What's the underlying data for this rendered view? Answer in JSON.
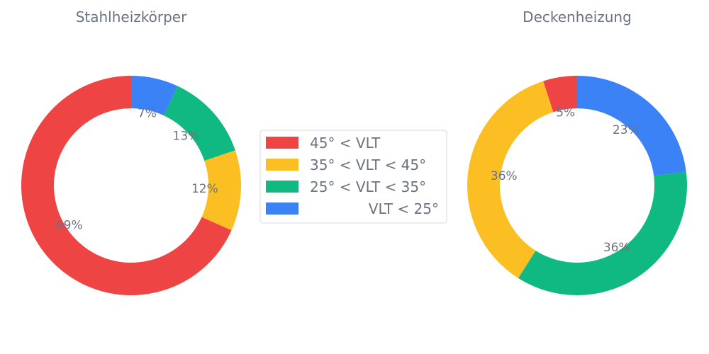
{
  "chart_data": [
    {
      "type": "pie",
      "title": "Stahlheizkörper",
      "categories": [
        "45° < VLT",
        "35° < VLT < 45°",
        "25° < VLT < 35°",
        "VLT < 25°"
      ],
      "values": [
        69,
        12,
        13,
        7
      ],
      "labels": [
        "69%",
        "12%",
        "13%",
        "7%"
      ]
    },
    {
      "type": "pie",
      "title": "Deckenheizung",
      "categories": [
        "45° < VLT",
        "35° < VLT < 45°",
        "25° < VLT < 35°",
        "VLT < 25°"
      ],
      "values": [
        5,
        36,
        36,
        23
      ],
      "labels": [
        "5%",
        "36%",
        "36%",
        "23%"
      ]
    }
  ],
  "legend": {
    "placement": "center",
    "items": [
      {
        "label": "45° < VLT",
        "color": "#ef4444"
      },
      {
        "label": "35° < VLT < 45°",
        "color": "#fbbf24"
      },
      {
        "label": "25° < VLT < 35°",
        "color": "#10b981"
      },
      {
        "label": "VLT < 25°",
        "color": "#3b82f6"
      }
    ]
  }
}
